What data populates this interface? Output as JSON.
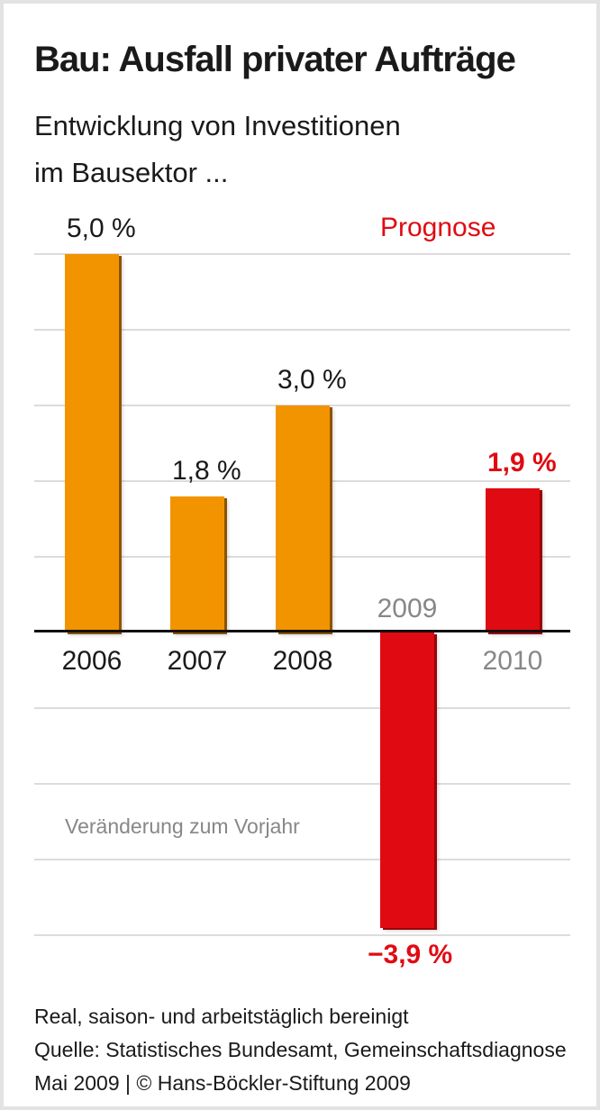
{
  "header": {
    "title": "Bau: Ausfall privater Aufträge",
    "subtitle_line1": "Entwicklung von Investitionen",
    "subtitle_line2": "im Bausektor ..."
  },
  "chart_data": {
    "type": "bar",
    "title": "Bau: Ausfall privater Aufträge",
    "subtitle": "Entwicklung von Investitionen im Bausektor ...",
    "xlabel": "",
    "ylabel": "Veränderung zum Vorjahr (%)",
    "categories": [
      "2006",
      "2007",
      "2008",
      "2009",
      "2010"
    ],
    "values": [
      5.0,
      1.8,
      3.0,
      -3.9,
      1.9
    ],
    "ylim": [
      -4.6,
      5.6
    ],
    "grid": true,
    "gridlines_pct": [
      5,
      4,
      3,
      2,
      1,
      -1,
      -2,
      -3,
      -4
    ],
    "legend_position": "none",
    "prognose_label": "Prognose",
    "note_label": "Veränderung zum Vorjahr",
    "bars": [
      {
        "year": "2006",
        "value": 5.0,
        "label": "5,0 %",
        "color": "#F29400",
        "edge": "orange",
        "label_color": "#1a1a1a",
        "label_weight": "400",
        "year_color": "#1a1a1a",
        "year_side": "below"
      },
      {
        "year": "2007",
        "value": 1.8,
        "label": "1,8 %",
        "color": "#F29400",
        "edge": "orange",
        "label_color": "#1a1a1a",
        "label_weight": "400",
        "year_color": "#1a1a1a",
        "year_side": "below"
      },
      {
        "year": "2008",
        "value": 3.0,
        "label": "3,0 %",
        "color": "#F29400",
        "edge": "orange",
        "label_color": "#1a1a1a",
        "label_weight": "400",
        "year_color": "#1a1a1a",
        "year_side": "below"
      },
      {
        "year": "2009",
        "value": -3.9,
        "label": "−3,9 %",
        "color": "#E00B12",
        "edge": "red",
        "label_color": "#E00B12",
        "label_weight": "700",
        "year_color": "#878787",
        "year_side": "above"
      },
      {
        "year": "2010",
        "value": 1.9,
        "label": "1,9 %",
        "color": "#E00B12",
        "edge": "red",
        "label_color": "#E00B12",
        "label_weight": "700",
        "year_color": "#878787",
        "year_side": "below"
      }
    ]
  },
  "colors": {
    "orange": "#F29400",
    "red": "#E00B12",
    "gray_text": "#878787",
    "black_text": "#1a1a1a",
    "gridline": "#dcdcdc",
    "axis": "#111111",
    "page_border": "#e3e3e3"
  },
  "footer": {
    "line1": "Real, saison- und arbeitstäglich bereinigt",
    "line2": "Quelle: Statistisches Bundesamt, Gemeinschaftsdiagnose",
    "line3": "Mai 2009 | © Hans-Böckler-Stiftung 2009"
  }
}
